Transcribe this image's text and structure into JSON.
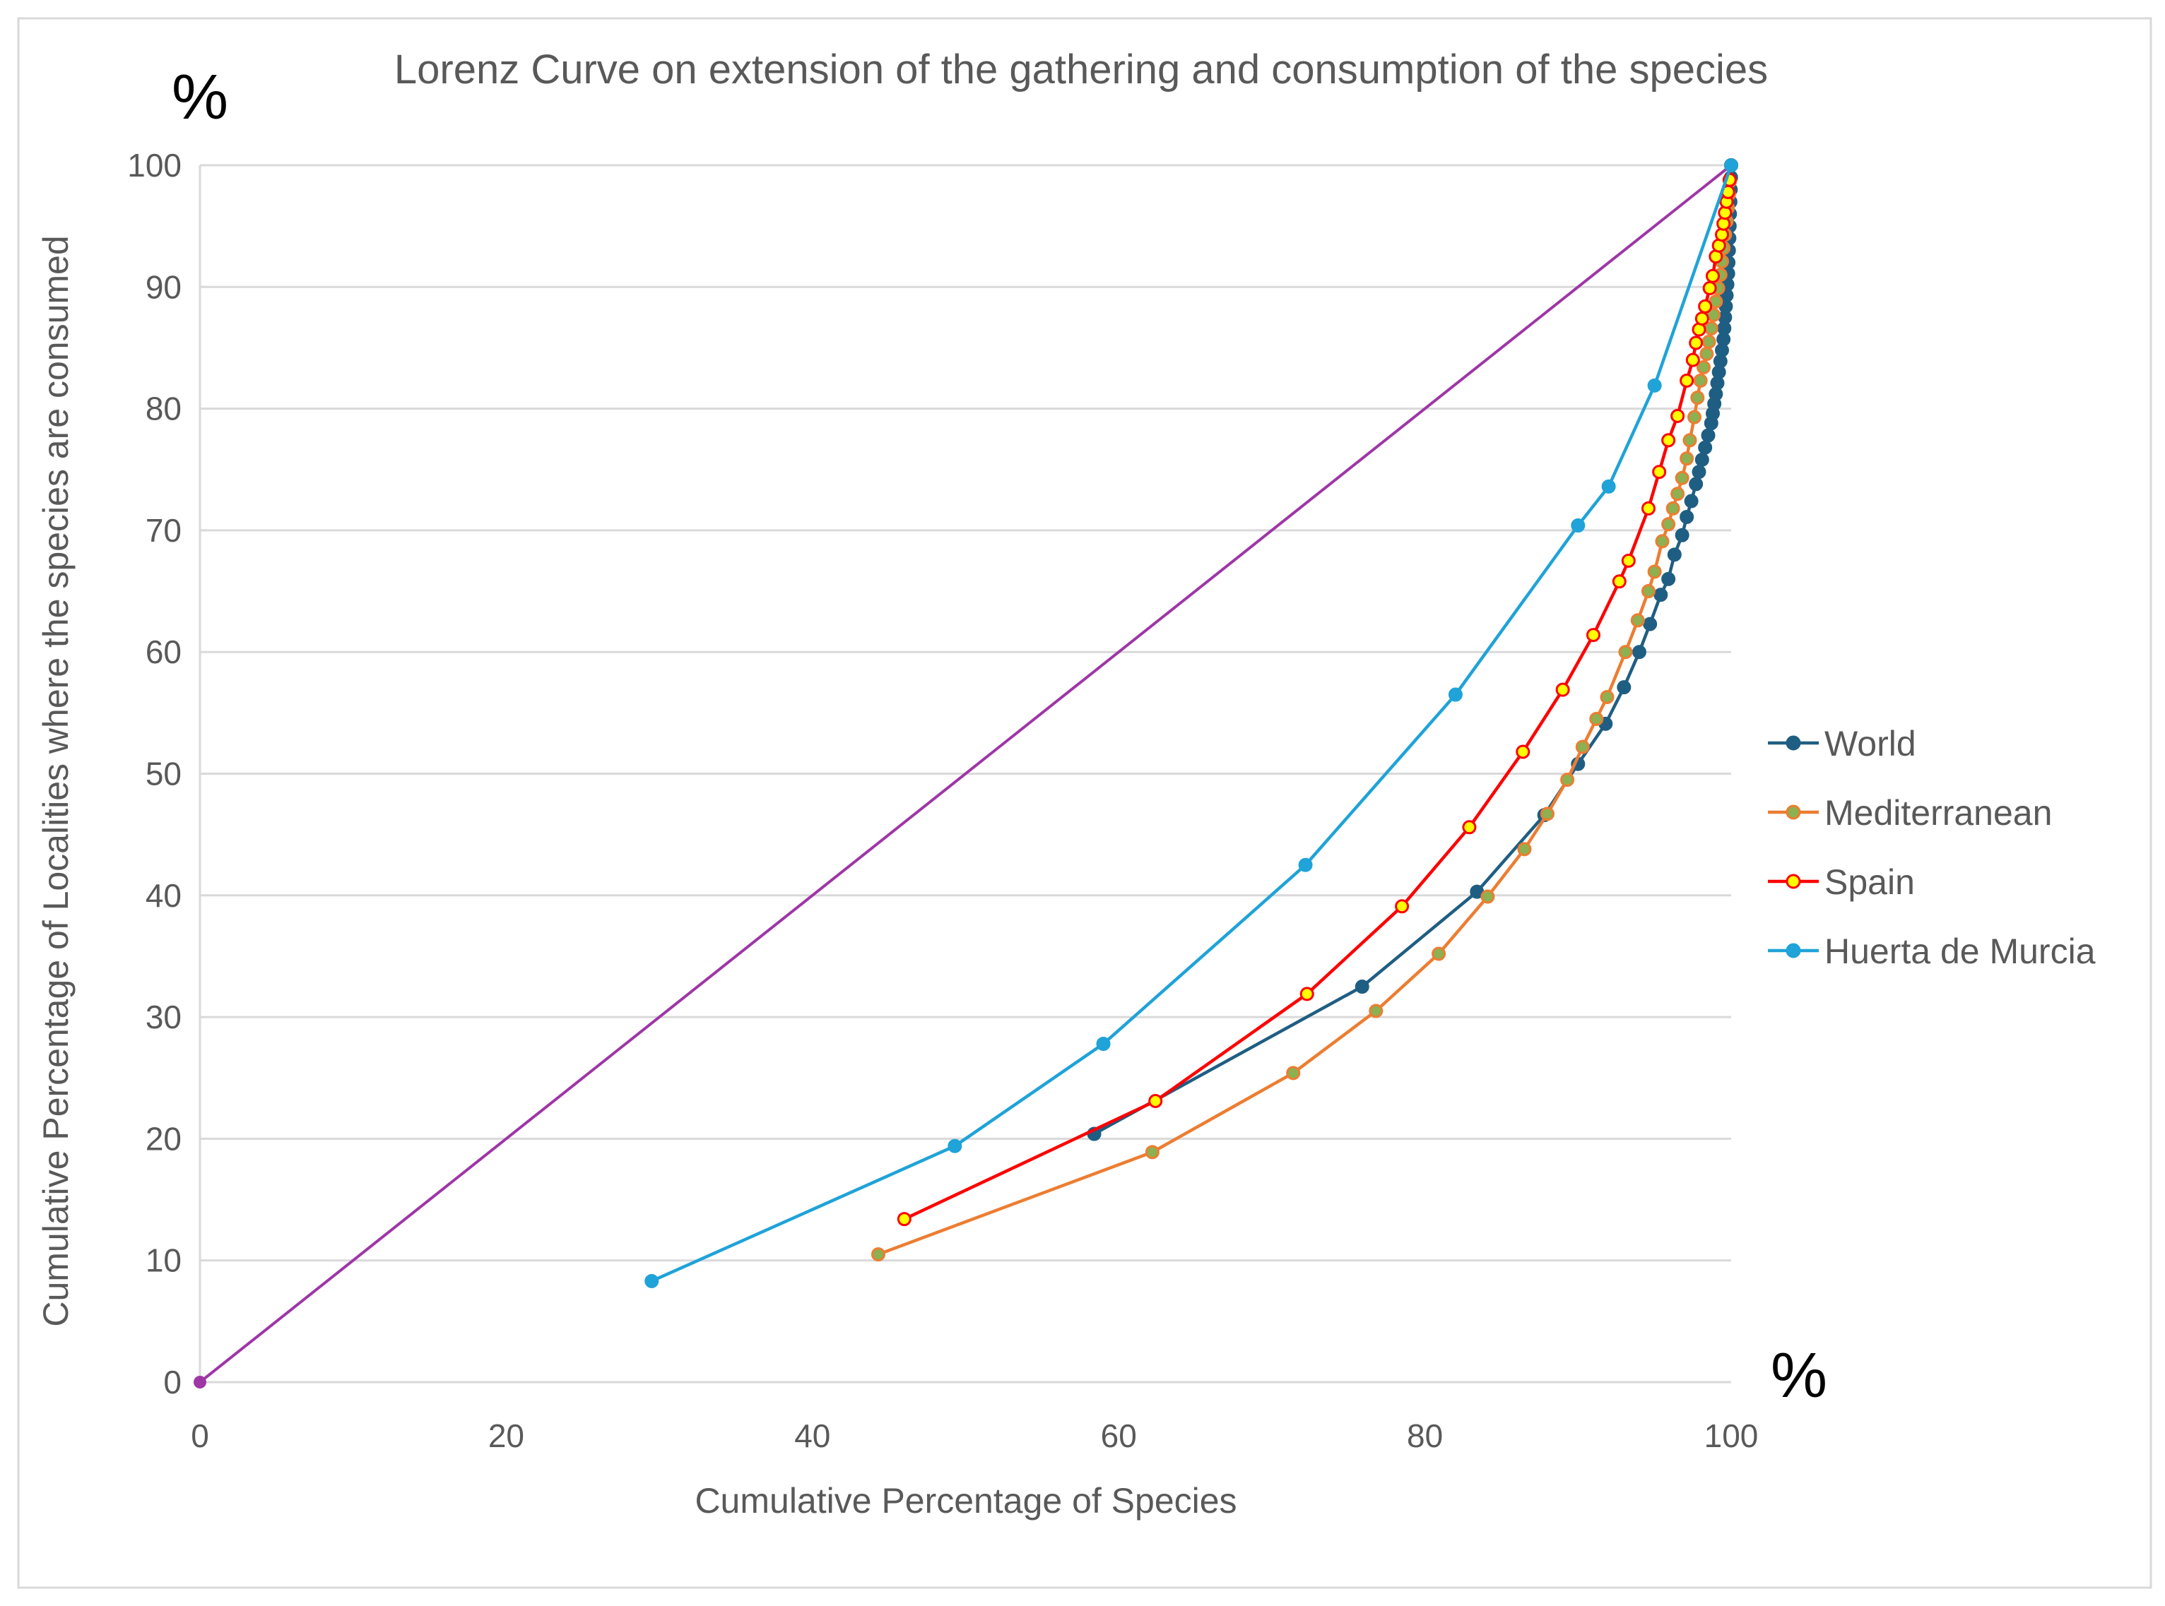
{
  "chart_data": {
    "type": "line",
    "title": "Lorenz Curve on extension of the gathering and consumption of the species",
    "xlabel": "Cumulative Percentage  of Species",
    "ylabel": "Cumulative Percentage of  Localities where the species are consumed",
    "x_unit": "%",
    "y_unit": "%",
    "xlim": [
      0,
      100
    ],
    "ylim": [
      0,
      100
    ],
    "x_ticks": [
      "0",
      "20",
      "40",
      "60",
      "80",
      "100"
    ],
    "y_ticks": [
      "0",
      "10",
      "20",
      "30",
      "40",
      "50",
      "60",
      "70",
      "80",
      "90",
      "100"
    ],
    "grid": "horizontal",
    "legend_position": "right",
    "equality_line": {
      "color": "#9E36A6",
      "points": [
        [
          0,
          0
        ],
        [
          100,
          100
        ]
      ]
    },
    "series": [
      {
        "name": "World",
        "color": "#1F5E83",
        "marker_fill": "#1F5E83",
        "marker_stroke": "#1F5E83",
        "points": [
          [
            58.4,
            20.4
          ],
          [
            75.9,
            32.5
          ],
          [
            83.4,
            40.3
          ],
          [
            87.8,
            46.6
          ],
          [
            90.0,
            50.8
          ],
          [
            91.8,
            54.1
          ],
          [
            93.0,
            57.1
          ],
          [
            94.0,
            60.0
          ],
          [
            94.7,
            62.3
          ],
          [
            95.4,
            64.7
          ],
          [
            95.9,
            66.0
          ],
          [
            96.3,
            68.0
          ],
          [
            96.8,
            69.6
          ],
          [
            97.1,
            71.1
          ],
          [
            97.4,
            72.4
          ],
          [
            97.7,
            73.8
          ],
          [
            97.9,
            74.8
          ],
          [
            98.1,
            75.8
          ],
          [
            98.3,
            76.8
          ],
          [
            98.5,
            77.8
          ],
          [
            98.7,
            78.8
          ],
          [
            98.8,
            79.6
          ],
          [
            98.9,
            80.4
          ],
          [
            99.0,
            81.2
          ],
          [
            99.1,
            82.1
          ],
          [
            99.2,
            83.0
          ],
          [
            99.3,
            83.9
          ],
          [
            99.4,
            84.8
          ],
          [
            99.5,
            85.7
          ],
          [
            99.55,
            86.6
          ],
          [
            99.6,
            87.5
          ],
          [
            99.65,
            88.4
          ],
          [
            99.7,
            89.3
          ],
          [
            99.75,
            90.2
          ],
          [
            99.8,
            91.1
          ],
          [
            99.82,
            92.0
          ],
          [
            99.85,
            93.0
          ],
          [
            99.88,
            94.0
          ],
          [
            99.9,
            95.0
          ],
          [
            99.92,
            96.0
          ],
          [
            99.95,
            97.0
          ],
          [
            99.97,
            98.0
          ],
          [
            99.99,
            99.0
          ],
          [
            100,
            100
          ]
        ]
      },
      {
        "name": "Mediterranean",
        "color": "#ED7D31",
        "marker_fill": "#8DB050",
        "marker_stroke": "#ED7D31",
        "points": [
          [
            44.3,
            10.5
          ],
          [
            62.2,
            18.9
          ],
          [
            71.4,
            25.4
          ],
          [
            76.8,
            30.5
          ],
          [
            80.9,
            35.2
          ],
          [
            84.1,
            39.9
          ],
          [
            86.5,
            43.8
          ],
          [
            88.0,
            46.7
          ],
          [
            89.3,
            49.5
          ],
          [
            90.3,
            52.2
          ],
          [
            91.2,
            54.5
          ],
          [
            91.9,
            56.3
          ],
          [
            93.1,
            60.0
          ],
          [
            93.9,
            62.6
          ],
          [
            94.6,
            65.0
          ],
          [
            95.0,
            66.6
          ],
          [
            95.5,
            69.1
          ],
          [
            95.9,
            70.5
          ],
          [
            96.2,
            71.8
          ],
          [
            96.5,
            73.0
          ],
          [
            96.8,
            74.3
          ],
          [
            97.1,
            75.9
          ],
          [
            97.3,
            77.4
          ],
          [
            97.6,
            79.3
          ],
          [
            97.8,
            80.9
          ],
          [
            98.0,
            82.3
          ],
          [
            98.2,
            83.4
          ],
          [
            98.4,
            84.5
          ],
          [
            98.55,
            85.5
          ],
          [
            98.7,
            86.6
          ],
          [
            98.85,
            87.7
          ],
          [
            99.0,
            88.8
          ],
          [
            99.15,
            89.9
          ],
          [
            99.3,
            91.0
          ],
          [
            99.4,
            92.1
          ],
          [
            99.5,
            93.2
          ],
          [
            99.6,
            94.3
          ],
          [
            99.7,
            95.4
          ],
          [
            99.78,
            96.5
          ],
          [
            99.85,
            97.6
          ],
          [
            99.92,
            98.7
          ],
          [
            100,
            100
          ]
        ]
      },
      {
        "name": "Spain",
        "color": "#FF0000",
        "marker_fill": "#FFFF00",
        "marker_stroke": "#FF0000",
        "points": [
          [
            46.0,
            13.4
          ],
          [
            62.4,
            23.1
          ],
          [
            72.3,
            31.9
          ],
          [
            78.5,
            39.1
          ],
          [
            82.9,
            45.6
          ],
          [
            86.4,
            51.8
          ],
          [
            89.0,
            56.9
          ],
          [
            91.0,
            61.4
          ],
          [
            92.7,
            65.8
          ],
          [
            93.3,
            67.5
          ],
          [
            94.6,
            71.8
          ],
          [
            95.3,
            74.8
          ],
          [
            95.9,
            77.4
          ],
          [
            96.5,
            79.4
          ],
          [
            97.1,
            82.3
          ],
          [
            97.5,
            84.0
          ],
          [
            97.7,
            85.4
          ],
          [
            97.9,
            86.5
          ],
          [
            98.1,
            87.4
          ],
          [
            98.3,
            88.4
          ],
          [
            98.6,
            89.9
          ],
          [
            98.8,
            90.9
          ],
          [
            99.0,
            92.5
          ],
          [
            99.2,
            93.4
          ],
          [
            99.4,
            94.3
          ],
          [
            99.5,
            95.2
          ],
          [
            99.6,
            96.1
          ],
          [
            99.7,
            97.0
          ],
          [
            99.8,
            97.8
          ],
          [
            99.9,
            98.8
          ],
          [
            100,
            100
          ]
        ]
      },
      {
        "name": "Huerta de Murcia",
        "color": "#1FA3D8",
        "marker_fill": "#1FA3D8",
        "marker_stroke": "#1FA3D8",
        "points": [
          [
            29.5,
            8.3
          ],
          [
            49.3,
            19.4
          ],
          [
            59.0,
            27.8
          ],
          [
            72.2,
            42.5
          ],
          [
            82.0,
            56.5
          ],
          [
            90.0,
            70.4
          ],
          [
            92.0,
            73.6
          ],
          [
            95.0,
            81.9
          ],
          [
            100,
            100
          ]
        ]
      }
    ]
  }
}
